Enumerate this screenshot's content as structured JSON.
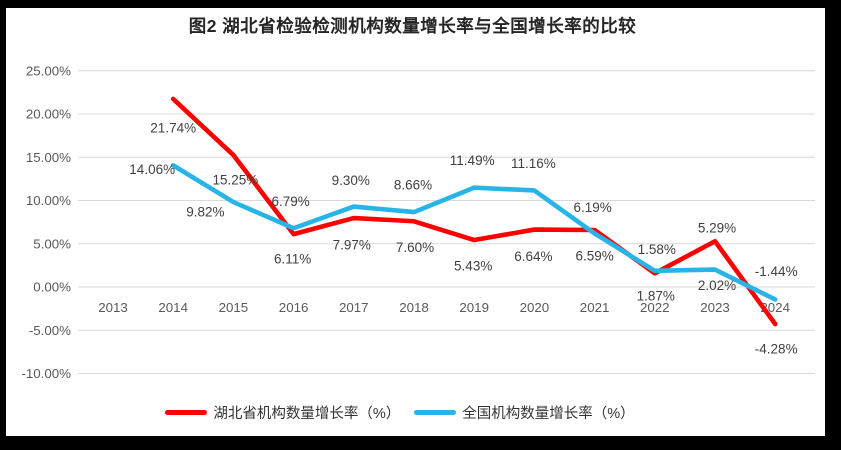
{
  "title": "图2 湖北省检验检测机构数量增长率与全国增长率的比较",
  "colors": {
    "hubei_red": "#fe0000",
    "national_blue": "#29b4e8",
    "gridline": "#d9d9d9",
    "axis_text": "#595959",
    "data_label_text": "#404040",
    "frame": "#000000",
    "background": "#ffffff"
  },
  "legend": {
    "items": [
      {
        "label": "湖北省机构数量增长率（%）",
        "color": "#fe0000"
      },
      {
        "label": "全国机构数量增长率（%）",
        "color": "#29b4e8"
      }
    ]
  },
  "chart_data": {
    "type": "line",
    "title": "图2 湖北省检验检测机构数量增长率与全国增长率的比较",
    "xlabel": "",
    "ylabel": "",
    "ylim": [
      -10,
      25
    ],
    "grid": "horizontal",
    "legend_position": "bottom",
    "categories": [
      "2013",
      "2014",
      "2015",
      "2016",
      "2017",
      "2018",
      "2019",
      "2020",
      "2021",
      "2022",
      "2023",
      "2024"
    ],
    "y_ticks": [
      {
        "value": 25,
        "label": "25.00%"
      },
      {
        "value": 20,
        "label": "20.00%"
      },
      {
        "value": 15,
        "label": "15.00%"
      },
      {
        "value": 10,
        "label": "10.00%"
      },
      {
        "value": 5,
        "label": "5.00%"
      },
      {
        "value": 0,
        "label": "0.00%"
      },
      {
        "value": -5,
        "label": "-5.00%"
      },
      {
        "value": -10,
        "label": "-10.00%"
      }
    ],
    "series": [
      {
        "name": "湖北省机构数量增长率（%）",
        "color": "#fe0000",
        "values": [
          null,
          21.74,
          15.25,
          6.11,
          7.97,
          7.6,
          5.43,
          6.64,
          6.59,
          1.58,
          5.29,
          -4.28
        ],
        "labels": [
          "",
          "21.74%",
          "15.25%",
          "6.11%",
          "7.97%",
          "7.60%",
          "5.43%",
          "6.64%",
          "6.59%",
          "1.58%",
          "5.29%",
          "-4.28%"
        ],
        "label_offsets": [
          [
            0,
            0
          ],
          [
            0,
            29
          ],
          [
            2,
            25
          ],
          [
            -1,
            25
          ],
          [
            -2,
            27
          ],
          [
            1,
            26
          ],
          [
            -1,
            26
          ],
          [
            -1,
            27
          ],
          [
            0,
            26
          ],
          [
            2,
            -24
          ],
          [
            2,
            -13
          ],
          [
            1,
            25
          ]
        ]
      },
      {
        "name": "全国机构数量增长率（%）",
        "color": "#29b4e8",
        "values": [
          null,
          14.06,
          9.82,
          6.79,
          9.3,
          8.66,
          11.49,
          11.16,
          6.19,
          1.87,
          2.02,
          -1.44
        ],
        "labels": [
          "",
          "14.06%",
          "9.82%",
          "6.79%",
          "9.30%",
          "8.66%",
          "11.49%",
          "11.16%",
          "6.19%",
          "1.87%",
          "2.02%",
          "-1.44%"
        ],
        "label_offsets": [
          [
            0,
            0
          ],
          [
            -21,
            4
          ],
          [
            -28,
            10
          ],
          [
            -3,
            -27
          ],
          [
            -3,
            -26
          ],
          [
            -1,
            -27
          ],
          [
            -2,
            -27
          ],
          [
            -1,
            -27
          ],
          [
            -2,
            -26
          ],
          [
            1,
            25
          ],
          [
            2,
            16
          ],
          [
            1,
            -28
          ]
        ]
      }
    ]
  }
}
